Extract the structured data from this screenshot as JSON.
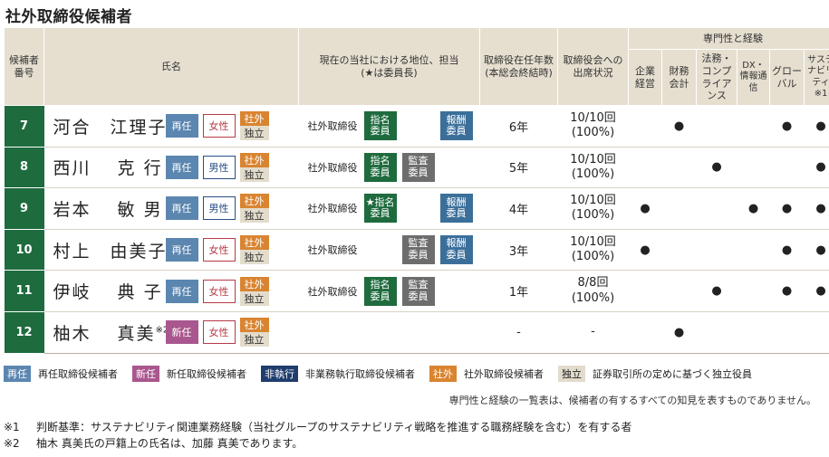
{
  "title": "社外取締役候補者",
  "headers": {
    "number": "候補者\n番号",
    "name": "氏名",
    "position": "現在の当社における地位、担当\n(★は委員長)",
    "years": "取締役在任年数\n(本総会終結時)",
    "attendance": "取締役会への\n出席状況",
    "expertise_group": "専門性と経験",
    "expertise": [
      "企業\n経営",
      "財務\n会計",
      "法務・\nコンプ\nライア\nンス",
      "DX・\n情報通信",
      "グロー\nバル",
      "サステ\nナビリ\nティ\n※1"
    ]
  },
  "badges": {
    "reappoint": "再任",
    "new": "新任",
    "female": "女性",
    "male": "男性",
    "outside": "社外",
    "independent": "独立"
  },
  "committees": {
    "nomination": "指名\n委員",
    "nomination_chair": "★指名\n委員",
    "audit": "監査\n委員",
    "remuneration": "報酬\n委員"
  },
  "dot": "●",
  "rows": [
    {
      "num": "7",
      "name": "河合　江理子",
      "sup": "",
      "position": "社外取締役",
      "years": "6年",
      "attendance": "10/10回\n(100%)"
    },
    {
      "num": "8",
      "name": "西川　 克 行",
      "sup": "",
      "position": "社外取締役",
      "years": "5年",
      "attendance": "10/10回\n(100%)"
    },
    {
      "num": "9",
      "name": "岩本　 敏 男",
      "sup": "",
      "position": "社外取締役",
      "years": "4年",
      "attendance": "10/10回\n(100%)"
    },
    {
      "num": "10",
      "name": "村上　由美子",
      "sup": "",
      "position": "社外取締役",
      "years": "3年",
      "attendance": "10/10回\n(100%)"
    },
    {
      "num": "11",
      "name": "伊岐　 典 子",
      "sup": "",
      "position": "社外取締役",
      "years": "1年",
      "attendance": "8/8回\n(100%)"
    },
    {
      "num": "12",
      "name": "柚木　 真美",
      "sup": "※2",
      "position": "",
      "years": "-",
      "attendance": "-"
    }
  ],
  "legend": {
    "reappoint_desc": "再任取締役候補者",
    "new_desc": "新任取締役候補者",
    "nonexec": "非執行",
    "nonexec_desc": "非業務執行取締役候補者",
    "outside_desc": "社外取締役候補者",
    "independent_desc": "証券取引所の定めに基づく独立役員"
  },
  "disclaimer": "専門性と経験の一覧表は、候補者の有するすべての知見を表すものでありません。",
  "notes": [
    {
      "mark": "※1",
      "text": "判断基準：サステナビリティ関連業務経験（当社グループのサステナビリティ戦略を推進する職務経験を含む）を有する者"
    },
    {
      "mark": "※2",
      "text": "柚木 真美氏の戸籍上の氏名は、加藤 真美であります。"
    }
  ],
  "colors": {
    "green": "#1e6b3e",
    "reappoint": "#5b86b0",
    "new": "#a9578e",
    "outside": "#d98430",
    "header_bg": "#e6dfd0"
  }
}
